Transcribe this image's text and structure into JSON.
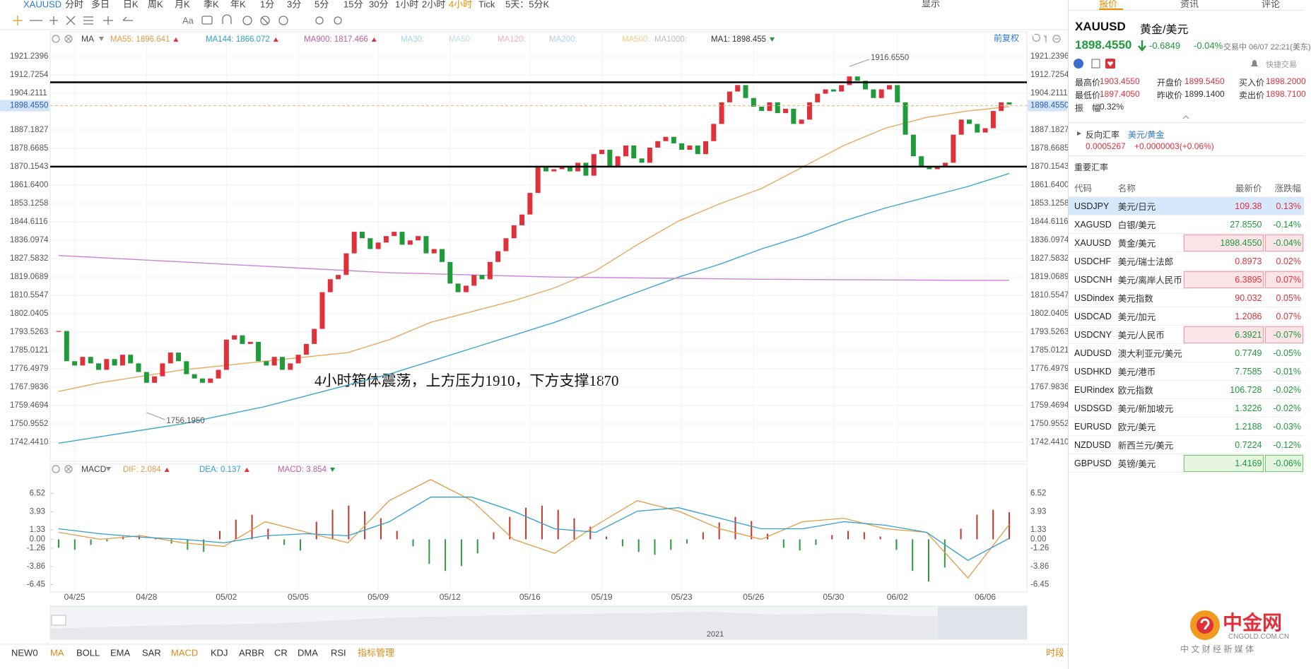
{
  "toolbar": {
    "symbol": "XAUUSD",
    "items": [
      "分时",
      "多日",
      "日K",
      "周K",
      "月K",
      "季K",
      "年K",
      "1分",
      "3分",
      "5分",
      "15分",
      "30分",
      "1小时",
      "2小时",
      "4小时",
      "Tick",
      "5天：5分K"
    ],
    "active": "4小时",
    "font_tool": "Aa",
    "display": "显示"
  },
  "chart_data": [
    {
      "type": "candlestick",
      "indicator": "MA",
      "adjust": "前复权",
      "legend": [
        {
          "label": "MA55: 1896.641",
          "color": "#e39a45",
          "trend": "up"
        },
        {
          "label": "MA144: 1866.072",
          "color": "#2e9fcf",
          "trend": "up"
        },
        {
          "label": "MA900: 1817.466",
          "color": "#c05a9c",
          "trend": "up"
        },
        {
          "label": "MA30:",
          "color": "#a9d6e8"
        },
        {
          "label": "MA50:",
          "color": "#bcdde8"
        },
        {
          "label": "MA120:",
          "color": "#efb0c8"
        },
        {
          "label": "MA200:",
          "color": "#aed2ee"
        },
        {
          "label": "MA500:",
          "color": "#ecd08c"
        },
        {
          "label": "MA1000:",
          "color": "#b9bccf"
        },
        {
          "label": "MA1: 1898.455",
          "color": "#333333",
          "trend": "down"
        }
      ],
      "ylim": [
        1733.6,
        1932.7
      ],
      "yticks": [
        1921.2396,
        1912.7254,
        1904.2111,
        1887.1827,
        1878.6685,
        1870.1543,
        {
          "value": 1861.64,
          "label": "1861.6400"
        },
        1853.1258,
        1844.6116,
        1836.0974,
        1827.5832,
        1819.0689,
        1810.5547,
        1802.0405,
        1793.5263,
        1785.0121,
        1776.4979,
        1767.9836,
        1759.4694,
        1750.9552,
        {
          "value": 1742.441,
          "label": "1742.4410"
        }
      ],
      "categories": [
        null,
        null,
        "04/25",
        null,
        null,
        null,
        null,
        null,
        null,
        null,
        null,
        "04/28",
        null,
        null,
        null,
        null,
        null,
        null,
        null,
        null,
        null,
        "05/02",
        null,
        null,
        null,
        null,
        null,
        null,
        null,
        null,
        "05/05",
        null,
        null,
        null,
        null,
        null,
        null,
        null,
        null,
        null,
        "05/09",
        null,
        null,
        null,
        null,
        null,
        null,
        null,
        null,
        "05/12",
        null,
        null,
        null,
        null,
        null,
        null,
        null,
        null,
        null,
        "05/16",
        null,
        null,
        null,
        null,
        null,
        null,
        null,
        null,
        "05/19",
        null,
        null,
        null,
        null,
        null,
        null,
        null,
        null,
        null,
        "05/23",
        null,
        null,
        null,
        null,
        null,
        null,
        null,
        null,
        "05/26",
        null,
        null,
        null,
        null,
        null,
        null,
        null,
        null,
        null,
        "05/30",
        null,
        null,
        null,
        null,
        null,
        null,
        null,
        "06/02",
        null,
        null,
        null,
        null,
        null,
        null,
        null,
        null,
        null,
        null,
        "06/06",
        null,
        null,
        null
      ],
      "close": [
        1794,
        1780,
        1778,
        1782,
        1779,
        1776,
        1781,
        1778,
        1783,
        1779,
        1775,
        1770,
        1773,
        1779,
        1784,
        1780,
        1774,
        1772,
        1770,
        1772,
        1776,
        1790,
        1792,
        1788,
        1789,
        1780,
        1778,
        1782,
        1776,
        1779,
        1783,
        1788,
        1795,
        1812,
        1818,
        1820,
        1830,
        1840,
        1837,
        1832,
        1835,
        1838,
        1840,
        1834,
        1836,
        1838,
        1830,
        1832,
        1826,
        1816,
        1812,
        1815,
        1820,
        1818,
        1826,
        1831,
        1837,
        1843,
        1848,
        1858,
        1870,
        1868,
        1869,
        1870,
        1868,
        1872,
        1866,
        1876,
        1878,
        1870,
        1875,
        1880,
        1874,
        1872,
        1879,
        1882,
        1884,
        1881,
        1878,
        1880,
        1876,
        1882,
        1890,
        1900,
        1905,
        1908,
        1902,
        1898,
        1896,
        1900,
        1895,
        1897,
        1890,
        1892,
        1900,
        1904,
        1906,
        1905,
        1908,
        1912,
        1910,
        1906,
        1902,
        1906,
        1908,
        1900,
        1885,
        1875,
        1870,
        1869,
        1870,
        1872,
        1885,
        1892,
        1890,
        1886,
        1888,
        1896,
        1900,
        1899
      ],
      "up_color": "#e0313b",
      "down_color": "#1f9b3a",
      "lines": [
        {
          "color": "#e8a95e",
          "values": [
            1766,
            1770,
            1773,
            1776,
            1778,
            1780,
            1782,
            1784,
            1790,
            1798,
            1803,
            1808,
            1814,
            1822,
            1834,
            1845,
            1853,
            1860,
            1870,
            1880,
            1888,
            1893,
            1896,
            1898
          ]
        },
        {
          "color": "#3aa8d2",
          "values": [
            1742,
            1745,
            1748,
            1751,
            1755,
            1759,
            1764,
            1769,
            1774,
            1780,
            1786,
            1792,
            1798,
            1805,
            1812,
            1819,
            1825,
            1832,
            1838,
            1845,
            1851,
            1856,
            1861,
            1867
          ]
        },
        {
          "color": "#c985d6",
          "values": [
            1829,
            1828,
            1827,
            1826,
            1825,
            1824,
            1823,
            1822,
            1821,
            1820.5,
            1820,
            1819.5,
            1819,
            1818.8,
            1818.6,
            1818.4,
            1818.2,
            1818,
            1817.9,
            1817.8,
            1817.7,
            1817.6,
            1817.5,
            1817.5
          ]
        }
      ],
      "levels": [
        1909.3,
        1870.2
      ],
      "current_price": {
        "value": 1898.455,
        "label": "1898.4550"
      },
      "extremes": [
        {
          "value": 1916.655,
          "label": "1916.6550"
        },
        {
          "value": 1756.195,
          "label": "1756.1950"
        }
      ],
      "annotation": "4小时箱体震荡，上方压力1910，下方支撑1870",
      "grid": true
    },
    {
      "type": "macd",
      "indicator": "MACD",
      "legend": [
        {
          "label": "DIF: 2.084",
          "color": "#e39a45",
          "trend": "up"
        },
        {
          "label": "DEA: 0.137",
          "color": "#2e9fcf",
          "trend": "up"
        },
        {
          "label": "MACD: 3.854",
          "color": "#c05a9c",
          "trend": "down"
        }
      ],
      "ylim": [
        -7.5,
        10.7
      ],
      "yticks": [
        6.52,
        3.93,
        1.33,
        {
          "value": 0,
          "label": "0.00"
        },
        -1.26,
        -3.86,
        -6.45
      ],
      "histogram": [
        -1.2,
        -1.5,
        -0.8,
        -0.3,
        0.4,
        0.6,
        0.2,
        -0.6,
        -1.5,
        -1.8,
        1.2,
        2.8,
        3.5,
        1.5,
        -0.8,
        -1.6,
        2.5,
        4.2,
        4.8,
        4.0,
        3.0,
        1.2,
        -1.0,
        -3.5,
        -4.5,
        -3.8,
        -2.0,
        1.0,
        3.2,
        4.5,
        4.8,
        4.2,
        3.0,
        1.8,
        0.4,
        -1.0,
        -1.8,
        -2.2,
        -1.5,
        -0.6,
        1.0,
        2.4,
        3.2,
        2.6,
        0.8,
        -1.2,
        -1.6,
        -0.8,
        0.6,
        1.2,
        1.0,
        0.4,
        -1.5,
        -4.5,
        -6.0,
        -4.0,
        1.5,
        3.5,
        4.2,
        3.854
      ],
      "dif": [
        1.0,
        0,
        0.5,
        -0.5,
        -1.0,
        2.5,
        1.0,
        -0.5,
        5.5,
        8.5,
        5.5,
        0,
        -2.0,
        2.0,
        5.5,
        4.0,
        1.5,
        0,
        2.5,
        3.0,
        1.5,
        1.0,
        -5.5,
        2.084
      ],
      "dea": [
        1.5,
        0.8,
        0.3,
        0,
        -0.5,
        0.5,
        0.8,
        0.5,
        2.5,
        6,
        6,
        4,
        1.5,
        1,
        4,
        4.5,
        3,
        1.5,
        1.5,
        2.5,
        2,
        1,
        -3,
        0.137
      ],
      "up_color": "#c0392b",
      "down_color": "#2e9a3c"
    }
  ],
  "timeline": {
    "year": "2021"
  },
  "indicators": {
    "items": [
      "NEW0",
      "MA",
      "BOLL",
      "EMA",
      "SAR",
      "MACD",
      "KDJ",
      "ARBR",
      "CR",
      "DMA",
      "RSI",
      "指标管理"
    ],
    "active": [
      "MA",
      "MACD",
      "指标管理"
    ],
    "period": "时段"
  },
  "quote": {
    "tabs": [
      "报价",
      "资讯",
      "评论"
    ],
    "symbol": "XAUUSD",
    "name": "黄金/美元",
    "price": "1898.4550",
    "change": "-0.6849",
    "change_pct": "-0.04%",
    "status": "交易中 06/07 22:21(美东)",
    "quick_trade": "快捷交易",
    "stats": [
      {
        "label": "最高价",
        "value": "1903.4550",
        "color": "#e0313b"
      },
      {
        "label": "开盘价",
        "value": "1899.5450",
        "color": "#e0313b"
      },
      {
        "label": "买入价",
        "value": "1898.2000",
        "color": "#e0313b"
      },
      {
        "label": "最低价",
        "value": "1897.4050",
        "color": "#e0313b"
      },
      {
        "label": "昨收价",
        "value": "1899.1400",
        "color": "#333333"
      },
      {
        "label": "卖出价",
        "value": "1898.7100",
        "color": "#e0313b"
      },
      {
        "label": "振　幅",
        "value": "0.32%",
        "color": "#333333"
      }
    ],
    "reverse": {
      "label": "反向汇率",
      "pair": "美元/黄金",
      "price": "0.0005267",
      "change": "+0.0000003(+0.06%)"
    },
    "table": {
      "title": "重要汇率",
      "headers": [
        "代码",
        "名称",
        "最新价",
        "涨跌幅"
      ],
      "rows": [
        {
          "cells": [
            "USDJPY",
            "美元/日元",
            "109.38",
            "0.13%"
          ],
          "highlight": "selected"
        },
        {
          "cells": [
            "XAGUSD",
            "白银/美元",
            "27.8550",
            "-0.14%"
          ]
        },
        {
          "cells": [
            "XAUUSD",
            "黄金/美元",
            "1898.4550",
            "-0.04%"
          ],
          "highlight": "pink"
        },
        {
          "cells": [
            "USDCHF",
            "美元/瑞士法郎",
            "0.8973",
            "0.02%"
          ]
        },
        {
          "cells": [
            "USDCNH",
            "美元/离岸人民币",
            "6.3895",
            "0.07%"
          ],
          "highlight": "pink"
        },
        {
          "cells": [
            "USDindex",
            "美元指数",
            "90.032",
            "0.05%"
          ]
        },
        {
          "cells": [
            "USDCAD",
            "美元/加元",
            "1.2086",
            "0.07%"
          ]
        },
        {
          "cells": [
            "USDCNY",
            "美元/人民币",
            "6.3921",
            "-0.07%"
          ],
          "highlight": "pink"
        },
        {
          "cells": [
            "AUDUSD",
            "澳大利亚元/美元",
            "0.7749",
            "-0.05%"
          ]
        },
        {
          "cells": [
            "USDHKD",
            "美元/港币",
            "7.7585",
            "-0.01%"
          ]
        },
        {
          "cells": [
            "EURindex",
            "欧元指数",
            "106.728",
            "-0.02%"
          ]
        },
        {
          "cells": [
            "USDSGD",
            "美元/新加坡元",
            "1.3226",
            "-0.02%"
          ]
        },
        {
          "cells": [
            "EURUSD",
            "欧元/美元",
            "1.2188",
            "-0.03%"
          ]
        },
        {
          "cells": [
            "NZDUSD",
            "新西兰元/美元",
            "0.7224",
            "-0.12%"
          ]
        },
        {
          "cells": [
            "GBPUSD",
            "英镑/美元",
            "1.4169",
            "-0.06%"
          ],
          "highlight": "green"
        }
      ]
    }
  },
  "watermark": {
    "name": "中金网",
    "domain": "CNGOLD.COM.CN",
    "slogan": "中 文 财 经 新 媒 体"
  }
}
